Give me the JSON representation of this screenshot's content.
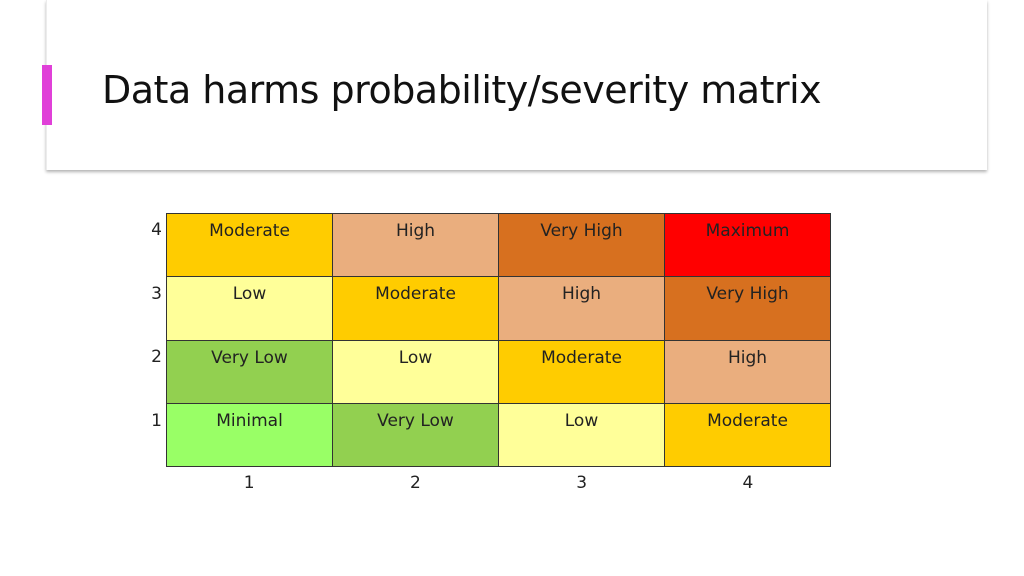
{
  "title": "Data harms probability/severity matrix",
  "y_labels": [
    "4",
    "3",
    "2",
    "1"
  ],
  "x_labels": [
    "1",
    "2",
    "3",
    "4"
  ],
  "levels": {
    "Minimal": "#99ff66",
    "Very Low": "#92d050",
    "Low": "#ffff99",
    "Moderate": "#ffcc00",
    "High": "#eaae7e",
    "Very High": "#d7701f",
    "Maximum": "#ff0000"
  },
  "rows": [
    [
      "Moderate",
      "High",
      "Very High",
      "Maximum"
    ],
    [
      "Low",
      "Moderate",
      "High",
      "Very High"
    ],
    [
      "Very Low",
      "Low",
      "Moderate",
      "High"
    ],
    [
      "Minimal",
      "Very Low",
      "Low",
      "Moderate"
    ]
  ],
  "accent_color": "#e040d8"
}
